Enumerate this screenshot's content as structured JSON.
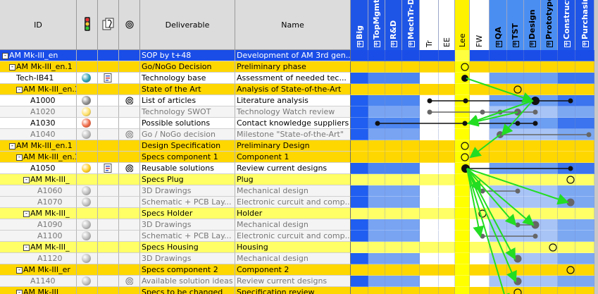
{
  "header": {
    "id_label": "ID",
    "deliverable_label": "Deliverable",
    "name_label": "Name",
    "traffic_icon": "traffic-light-icon",
    "attach_icon": "attachment-icon",
    "target_icon": "target-icon",
    "resources": [
      {
        "label": "Big",
        "boxed": true,
        "bg": "#1f55e6",
        "fg": "#ffffff"
      },
      {
        "label": "TopMgmt",
        "boxed": true,
        "bg": "#1f55e6",
        "fg": "#ffffff"
      },
      {
        "label": "R&D",
        "boxed": true,
        "bg": "#1f55e6",
        "fg": "#ffffff"
      },
      {
        "label": "MechTr-D",
        "boxed": true,
        "bg": "#1f55e6",
        "fg": "#ffffff"
      },
      {
        "label": "Tr",
        "boxed": false,
        "bg": "#ffffff",
        "fg": "#000000"
      },
      {
        "label": "EE",
        "boxed": false,
        "bg": "#ffffff",
        "fg": "#000000"
      },
      {
        "label": "Lee",
        "boxed": false,
        "bg": "#fff200",
        "fg": "#000000"
      },
      {
        "label": "FW",
        "boxed": false,
        "bg": "#ffffff",
        "fg": "#000000"
      },
      {
        "label": "QA",
        "boxed": true,
        "bg": "#4a8ef2",
        "fg": "#000000"
      },
      {
        "label": "TST",
        "boxed": true,
        "bg": "#4a8ef2",
        "fg": "#000000"
      },
      {
        "label": "Design",
        "boxed": true,
        "bg": "#4a8ef2",
        "fg": "#000000"
      },
      {
        "label": "Prototype",
        "boxed": true,
        "bg": "#4a8ef2",
        "fg": "#000000"
      },
      {
        "label": "Construct",
        "boxed": true,
        "bg": "#1f55e6",
        "fg": "#ffffff"
      },
      {
        "label": "Purchasir",
        "boxed": true,
        "bg": "#1f55e6",
        "fg": "#ffffff"
      }
    ]
  },
  "colors": {
    "selected": "#1a4de8",
    "group": "#ffd700",
    "subgroup": "#ffff66",
    "task": "#ffffff",
    "task_dim": "#f4f4f4",
    "arrow": "#22dd22"
  },
  "rows": [
    {
      "id": "AM Mk-III_en",
      "indent": 0,
      "toggle": "-",
      "kind": "selected",
      "deliverable": "SOP by t+48",
      "name": "Development of AM 3rd gen..."
    },
    {
      "id": "AM Mk-III_en.1",
      "indent": 1,
      "toggle": "-",
      "kind": "group",
      "deliverable": "Go/NoGo Decision",
      "name": "Preliminary phase"
    },
    {
      "id": "Tech-IB41",
      "indent": 2,
      "toggle": "",
      "kind": "task",
      "status": "#2a9bb0",
      "doc": true,
      "deliverable": "Technology base",
      "name": "Assessment of needed tec..."
    },
    {
      "id": "AM Mk-III_en.1",
      "indent": 2,
      "toggle": "-",
      "kind": "group",
      "deliverable": "State of the Art",
      "name": "Analysis of State-of-the-Art"
    },
    {
      "id": "A1000",
      "indent": 4,
      "toggle": "",
      "kind": "task",
      "status": "#8a8a8a",
      "target": true,
      "deliverable": "List of articles",
      "name": "Literature analysis"
    },
    {
      "id": "A1020",
      "indent": 4,
      "toggle": "",
      "kind": "task_dim",
      "status": "#ffe066",
      "deliverable": "Technology SWOT",
      "name": "Technology Watch review"
    },
    {
      "id": "A1030",
      "indent": 4,
      "toggle": "",
      "kind": "task",
      "status": "#ee6644",
      "deliverable": "Possible solutions",
      "name": "Contact knowledge suppliers"
    },
    {
      "id": "A1040",
      "indent": 4,
      "toggle": "",
      "kind": "task_dim",
      "status": "#bbbbbb",
      "target": true,
      "deliverable": "Go / NoGo decision",
      "name": "Milestone \"State-of-the-Art\""
    },
    {
      "id": "AM Mk-III_en.1",
      "indent": 1,
      "toggle": "-",
      "kind": "group",
      "deliverable": "Design Specification",
      "name": "Preliminary Design"
    },
    {
      "id": "AM Mk-III_en.1",
      "indent": 2,
      "toggle": "-",
      "kind": "group",
      "deliverable": "Specs component 1",
      "name": "Component 1"
    },
    {
      "id": "A1050",
      "indent": 4,
      "toggle": "",
      "kind": "task",
      "status": "#ffcc22",
      "doc": true,
      "target": true,
      "deliverable": "Reusable solutions",
      "name": "Review current designs"
    },
    {
      "id": "AM Mk-III_",
      "indent": 3,
      "toggle": "-",
      "kind": "subgroup",
      "deliverable": "Specs Plug",
      "name": "Plug"
    },
    {
      "id": "A1060",
      "indent": 5,
      "toggle": "",
      "kind": "task_dim",
      "status": "#bbbbbb",
      "deliverable": "3D Drawings",
      "name": "Mechanical design"
    },
    {
      "id": "A1070",
      "indent": 5,
      "toggle": "",
      "kind": "task_dim",
      "status": "#bbbbbb",
      "deliverable": "Schematic + PCB Lay...",
      "name": "Electronic curcuit and comp..."
    },
    {
      "id": "AM Mk-III_",
      "indent": 3,
      "toggle": "-",
      "kind": "subgroup",
      "deliverable": "Specs Holder",
      "name": "Holder"
    },
    {
      "id": "A1090",
      "indent": 5,
      "toggle": "",
      "kind": "task_dim",
      "status": "#bbbbbb",
      "deliverable": "3D Drawings",
      "name": "Mechanical design"
    },
    {
      "id": "A1100",
      "indent": 5,
      "toggle": "",
      "kind": "task_dim",
      "status": "#bbbbbb",
      "deliverable": "Schematic + PCB Lay...",
      "name": "Electronic curcuit and comp..."
    },
    {
      "id": "AM Mk-III_",
      "indent": 3,
      "toggle": "-",
      "kind": "subgroup",
      "deliverable": "Specs Housing",
      "name": "Housing"
    },
    {
      "id": "A1120",
      "indent": 5,
      "toggle": "",
      "kind": "task_dim",
      "status": "#bbbbbb",
      "deliverable": "3D Drawings",
      "name": "Mechanical design"
    },
    {
      "id": "AM Mk-III_er",
      "indent": 2,
      "toggle": "-",
      "kind": "group",
      "deliverable": "Specs component 2",
      "name": "Component 2"
    },
    {
      "id": "A1140",
      "indent": 4,
      "toggle": "",
      "kind": "task_dim",
      "status": "#bbbbbb",
      "target": true,
      "deliverable": "Available solution ideas",
      "name": "Review current designs"
    },
    {
      "id": "AM Mk-III_",
      "indent": 2,
      "toggle": "-",
      "kind": "group",
      "deliverable": "Specs to be changed",
      "name": "Specification review"
    }
  ]
}
